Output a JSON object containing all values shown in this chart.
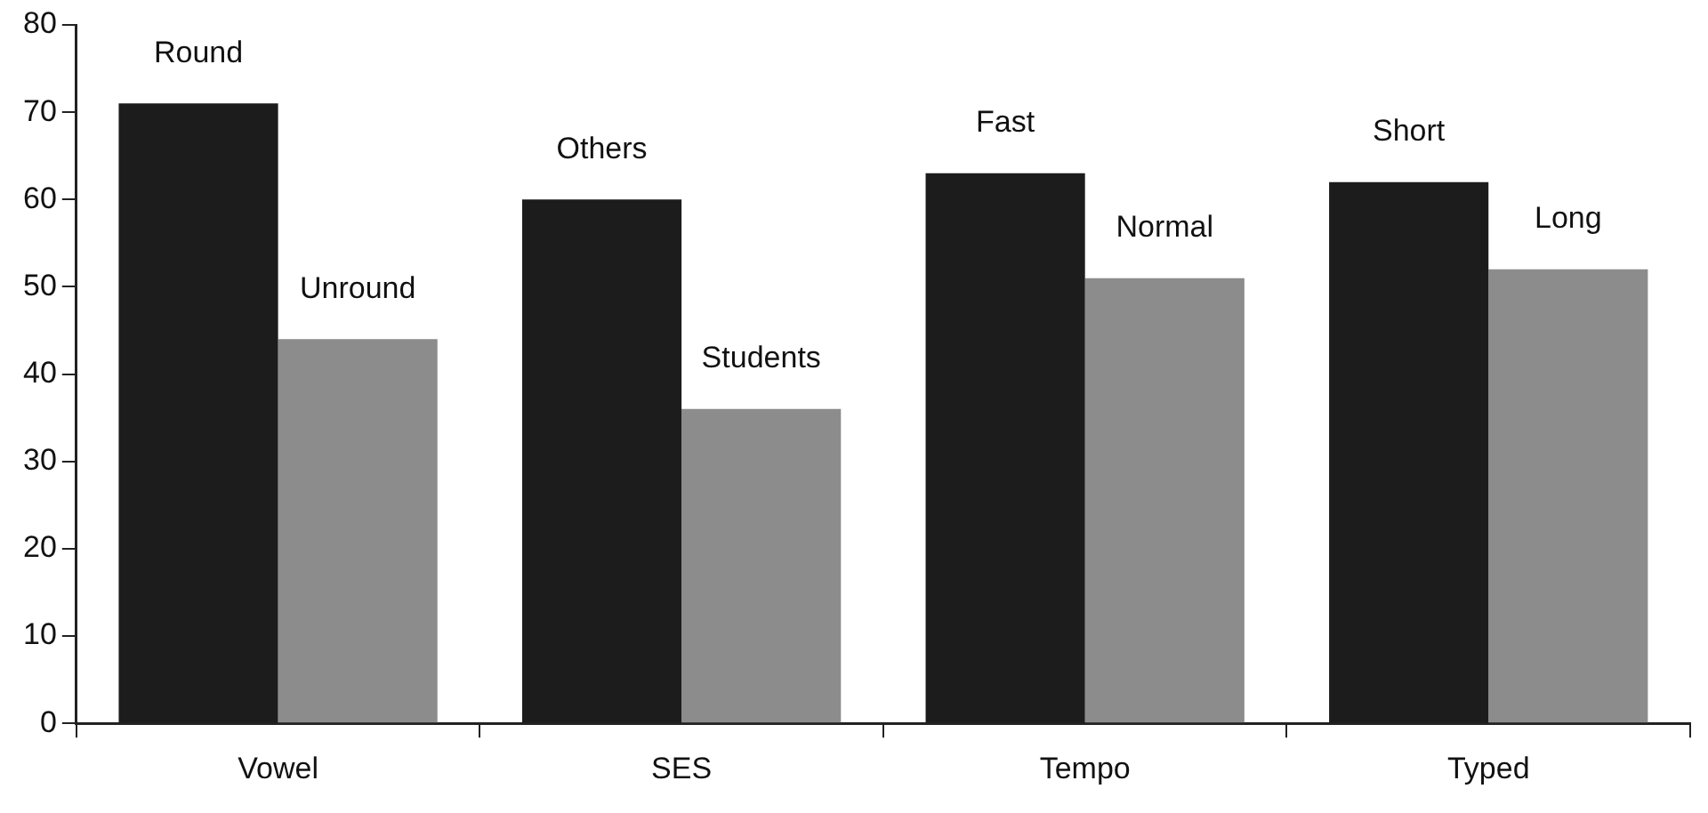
{
  "chart_data": {
    "type": "bar",
    "categories": [
      "Vowel",
      "SES",
      "Tempo",
      "Typed"
    ],
    "series": [
      {
        "color": "#1c1c1c",
        "values": [
          71,
          60,
          63,
          62
        ],
        "value_labels": [
          "Round",
          "Others",
          "Fast",
          "Short"
        ]
      },
      {
        "color": "#8c8c8c",
        "values": [
          44,
          36,
          51,
          52
        ],
        "value_labels": [
          "Unround",
          "Students",
          "Normal",
          "Long"
        ]
      }
    ],
    "ylim": [
      0,
      80
    ],
    "yticks": [
      0,
      10,
      20,
      30,
      40,
      50,
      60,
      70,
      80
    ],
    "grid": false,
    "legend": false
  }
}
